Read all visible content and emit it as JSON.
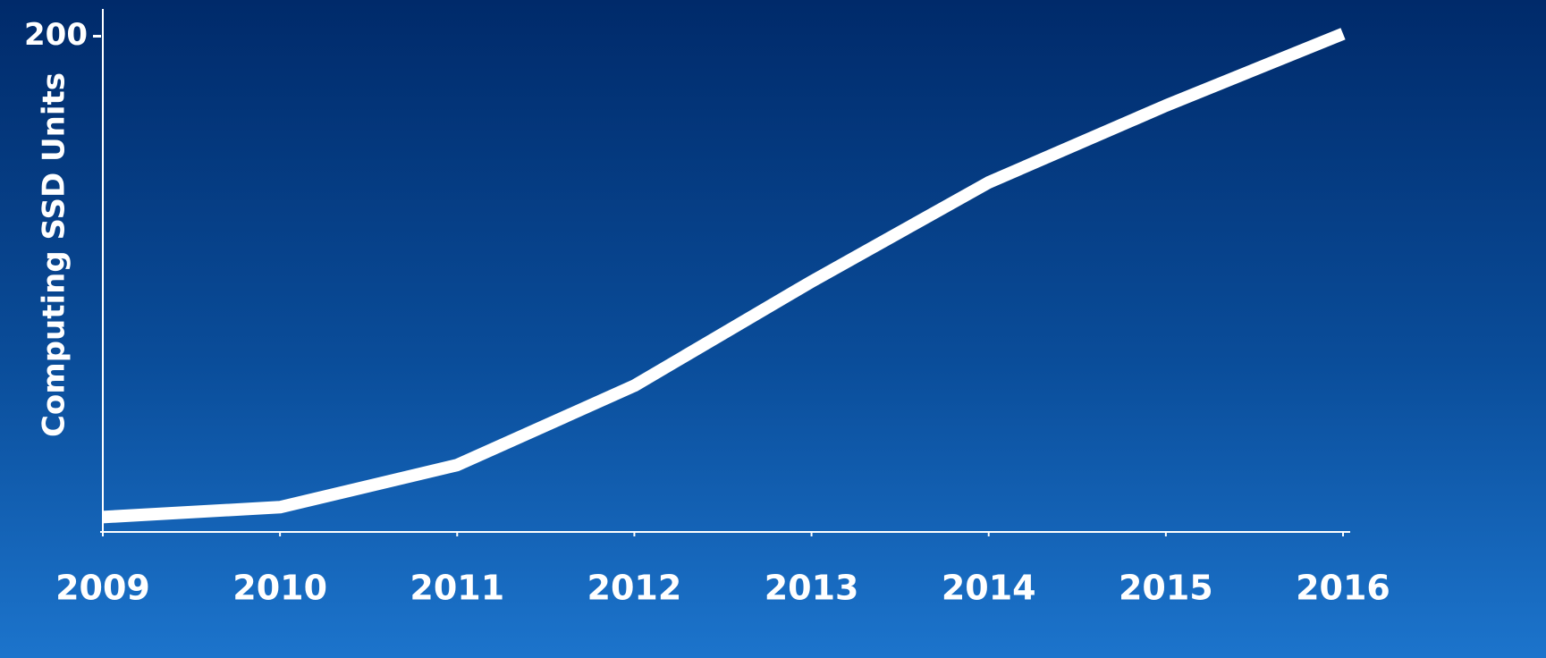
{
  "chart_data": {
    "type": "line",
    "y_label": "Computing SSD Units",
    "x": [
      2009,
      2010,
      2011,
      2012,
      2013,
      2014,
      2015,
      2016
    ],
    "values": [
      6,
      10,
      27,
      59,
      101,
      141,
      172,
      201
    ],
    "color": "#ffffff",
    "xlim": [
      2009,
      2016
    ],
    "xticks": [
      2009,
      2010,
      2011,
      2012,
      2013,
      2014,
      2015,
      2016
    ],
    "ylim": [
      0,
      211
    ],
    "yticks": [
      200
    ],
    "grid": false
  }
}
